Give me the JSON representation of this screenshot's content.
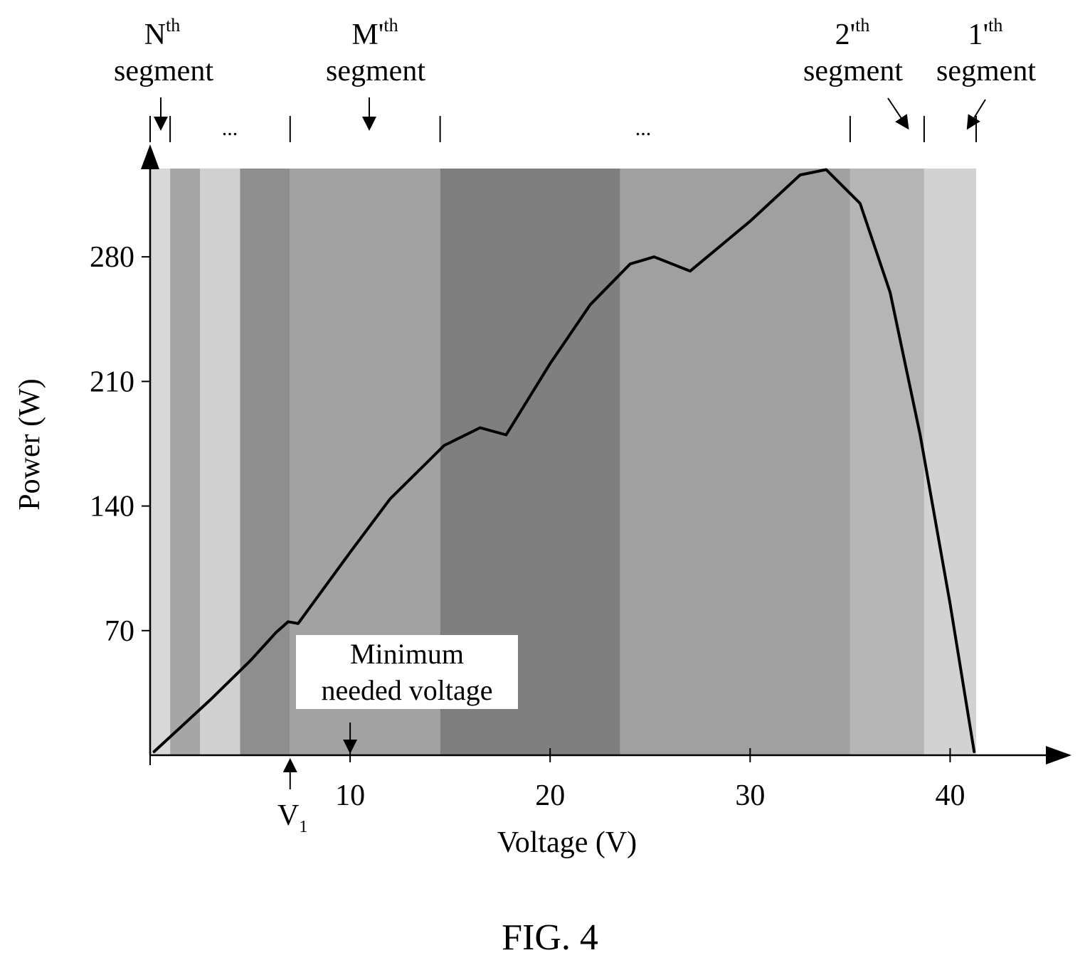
{
  "figure_label": "FIG. 4",
  "chart_data": {
    "type": "line",
    "title": "",
    "xlabel": "Voltage (V)",
    "ylabel": "Power (W)",
    "xlim": [
      0,
      45
    ],
    "ylim": [
      0,
      336
    ],
    "x_ticks": [
      10,
      20,
      30,
      40
    ],
    "y_ticks": [
      70,
      140,
      210,
      280
    ],
    "grid": false,
    "series": [
      {
        "x": [
          0.2,
          3,
          5,
          6.3,
          6.9,
          7.4,
          10,
          12,
          14.7,
          16.5,
          17.8,
          20,
          22,
          24,
          25.2,
          27,
          30,
          32.5,
          33.8,
          35.5,
          37,
          38.5,
          40,
          41.2
        ],
        "y": [
          2,
          31,
          53,
          69,
          75,
          74,
          114,
          144,
          174,
          184,
          180,
          220,
          253,
          276,
          280,
          272,
          300,
          326,
          329,
          310,
          260,
          180,
          85,
          2
        ]
      }
    ],
    "segment_bands": [
      {
        "from": 0,
        "to": 1,
        "shade": "#d8d8d8"
      },
      {
        "from": 1,
        "to": 2.5,
        "shade": "#a6a6a6"
      },
      {
        "from": 2.5,
        "to": 4.5,
        "shade": "#d0d0d0"
      },
      {
        "from": 4.5,
        "to": 7,
        "shade": "#8e8e8e"
      },
      {
        "from": 7,
        "to": 14.5,
        "shade": "#a2a2a2"
      },
      {
        "from": 14.5,
        "to": 23.5,
        "shade": "#7f7f7f"
      },
      {
        "from": 23.5,
        "to": 35,
        "shade": "#a0a0a0"
      },
      {
        "from": 35,
        "to": 38.7,
        "shade": "#b5b5b5"
      },
      {
        "from": 38.7,
        "to": 41.3,
        "shade": "#d2d2d2"
      }
    ],
    "segment_markers": [
      0,
      1,
      7,
      14.5,
      35,
      38.7,
      41.3
    ],
    "segment_labels": [
      {
        "sup": "th",
        "base": "N",
        "text": "segment"
      },
      {
        "sup": "th",
        "base": "M'",
        "text": "segment"
      },
      {
        "sup": "th",
        "base": "2'",
        "text": "segment"
      },
      {
        "sup": "th",
        "base": "1'",
        "text": "segment"
      }
    ],
    "ellipses": [
      "...",
      "..."
    ],
    "annotations": {
      "v1_label": "V",
      "v1_subscript": "1",
      "v1_x": 7,
      "min_voltage_line1": "Minimum",
      "min_voltage_line2": "needed voltage",
      "min_voltage_x": 10
    }
  }
}
